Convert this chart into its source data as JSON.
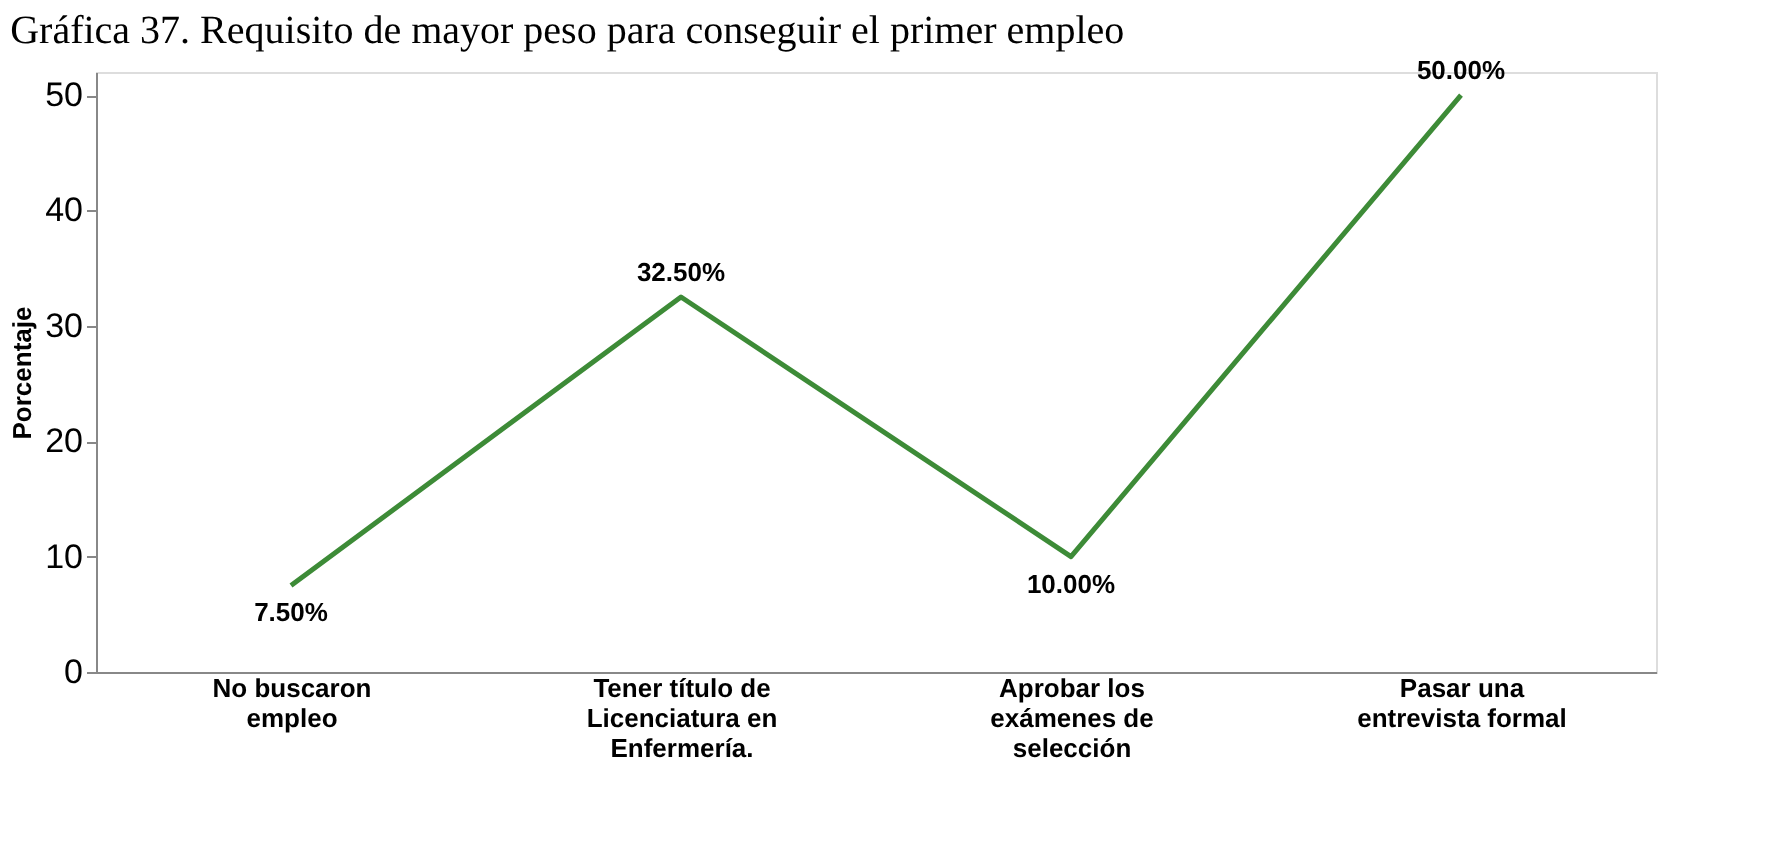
{
  "chart_data": {
    "type": "line",
    "title": "Gráfica 37. Requisito de mayor peso para conseguir el primer empleo",
    "ylabel": "Porcentaje",
    "categories": [
      "No buscaron empleo",
      "Tener título de Licenciatura en Enfermería.",
      "Aprobar los exámenes de selección",
      "Pasar una entrevista formal"
    ],
    "series": [
      {
        "color": "#3d8b37",
        "values": [
          7.5,
          32.5,
          10.0,
          50.0
        ],
        "value_labels": [
          "7.50%",
          "32.50%",
          "10.00%",
          "50.00%"
        ]
      }
    ],
    "ylim": [
      0,
      52
    ],
    "yticks": [
      0,
      10,
      20,
      30,
      40,
      50
    ],
    "grid": false,
    "marker": "none",
    "line_style": "solid"
  }
}
